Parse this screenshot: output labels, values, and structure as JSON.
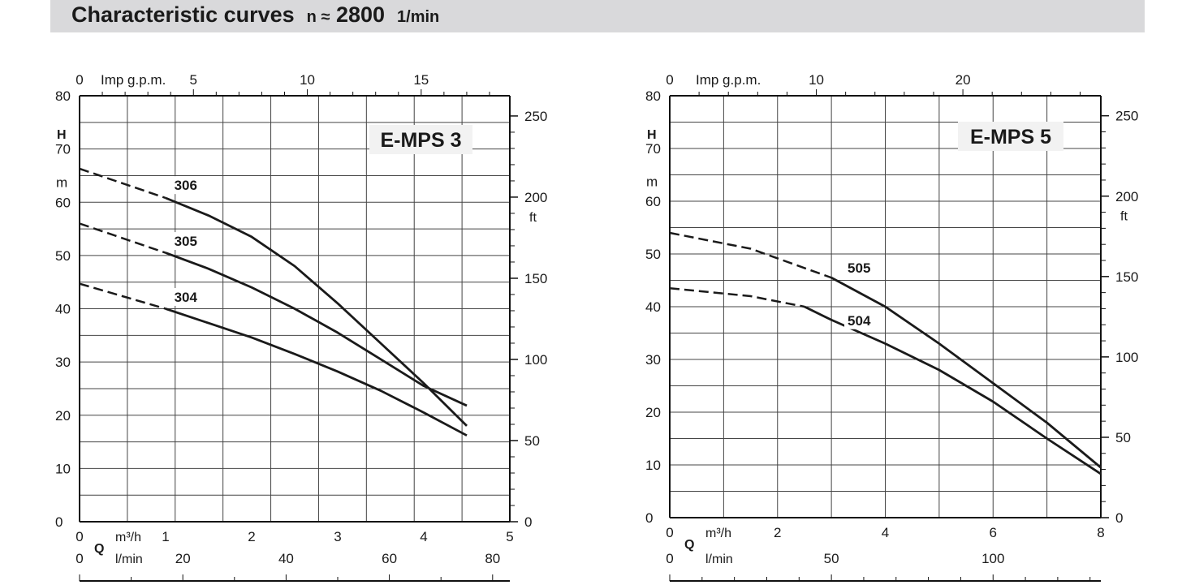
{
  "header": {
    "title": "Characteristic curves",
    "speed_symbol": "n ≈",
    "speed_value": "2800",
    "speed_unit": "1/min"
  },
  "chart_data": [
    {
      "type": "line",
      "title": "E-MPS 3",
      "left_unit_symbol": "H",
      "left_unit": "m",
      "right_unit": "ft",
      "ylim": [
        0,
        80
      ],
      "yticks": [
        0,
        10,
        20,
        30,
        40,
        50,
        60,
        70,
        80
      ],
      "ylabels": [
        "0",
        "10",
        "20",
        "30",
        "40",
        "50",
        "60",
        "70",
        "80"
      ],
      "right_ticks": [
        0,
        50,
        100,
        150,
        200,
        250
      ],
      "right_labels": [
        "0",
        "50",
        "100",
        "150",
        "200",
        "250"
      ],
      "xlim": [
        0,
        5
      ],
      "xlabel_symbol": "Q",
      "x_unit": "m³/h",
      "xticks": [
        0,
        1,
        2,
        3,
        4,
        5
      ],
      "xlabels": [
        "0",
        "1",
        "2",
        "3",
        "4",
        "5"
      ],
      "lmin_unit": "l/min",
      "lmin_ticks": [
        0,
        20,
        40,
        60,
        80
      ],
      "lmin_labels": [
        "0",
        "20",
        "40",
        "60",
        "80"
      ],
      "impgpm_unit": "Imp g.p.m.",
      "impgpm_ticks": [
        0,
        5,
        10,
        15
      ],
      "impgpm_labels": [
        "0",
        "5",
        "10",
        "15"
      ],
      "series": [
        {
          "name": "306",
          "label_at": [
            1.1,
            62.3
          ],
          "dashed": [
            [
              0,
              66.3
            ],
            [
              1,
              60.8
            ]
          ],
          "solid": [
            [
              1,
              60.8
            ],
            [
              1.5,
              57.5
            ],
            [
              2,
              53.5
            ],
            [
              2.5,
              48
            ],
            [
              3,
              41
            ],
            [
              3.5,
              33.5
            ],
            [
              4,
              26
            ],
            [
              4.5,
              18
            ]
          ]
        },
        {
          "name": "305",
          "label_at": [
            1.1,
            51.8
          ],
          "dashed": [
            [
              0,
              56
            ],
            [
              1,
              50.5
            ]
          ],
          "solid": [
            [
              1,
              50.5
            ],
            [
              1.5,
              47.5
            ],
            [
              2,
              44
            ],
            [
              2.5,
              40
            ],
            [
              3,
              35.5
            ],
            [
              3.5,
              30.5
            ],
            [
              4,
              25.5
            ],
            [
              4.5,
              21.8
            ]
          ]
        },
        {
          "name": "304",
          "label_at": [
            1.1,
            41.3
          ],
          "dashed": [
            [
              0,
              44.7
            ],
            [
              1,
              40
            ]
          ],
          "solid": [
            [
              1,
              40
            ],
            [
              1.5,
              37.3
            ],
            [
              2,
              34.6
            ],
            [
              2.5,
              31.5
            ],
            [
              3,
              28.2
            ],
            [
              3.5,
              24.6
            ],
            [
              4,
              20.5
            ],
            [
              4.5,
              16.2
            ]
          ]
        }
      ]
    },
    {
      "type": "line",
      "title": "E-MPS 5",
      "left_unit_symbol": "H",
      "left_unit": "m",
      "right_unit": "ft",
      "ylim": [
        0,
        80
      ],
      "yticks": [
        0,
        10,
        20,
        30,
        40,
        50,
        60,
        70,
        80
      ],
      "ylabels": [
        "0",
        "10",
        "20",
        "30",
        "40",
        "50",
        "60",
        "70",
        "80"
      ],
      "right_ticks": [
        0,
        50,
        100,
        150,
        200,
        250
      ],
      "right_labels": [
        "0",
        "50",
        "100",
        "150",
        "200",
        "250"
      ],
      "xlim": [
        0,
        8
      ],
      "xlabel_symbol": "Q",
      "x_unit": "m³/h",
      "xticks": [
        0,
        2,
        4,
        6,
        8
      ],
      "xlabels": [
        "0",
        "2",
        "4",
        "6",
        "8"
      ],
      "lmin_unit": "l/min",
      "lmin_ticks": [
        0,
        50,
        100
      ],
      "lmin_labels": [
        "0",
        "50",
        "100"
      ],
      "impgpm_unit": "Imp g.p.m.",
      "impgpm_ticks": [
        0,
        10,
        20
      ],
      "impgpm_labels": [
        "0",
        "10",
        "20"
      ],
      "series": [
        {
          "name": "505",
          "label_at": [
            3.3,
            46.5
          ],
          "dashed": [
            [
              0,
              54
            ],
            [
              1.5,
              51
            ],
            [
              3,
              45.5
            ]
          ],
          "solid": [
            [
              3,
              45.5
            ],
            [
              4,
              40
            ],
            [
              5,
              33
            ],
            [
              6,
              25.5
            ],
            [
              7,
              18
            ],
            [
              8,
              9.5
            ]
          ]
        },
        {
          "name": "504",
          "label_at": [
            3.3,
            36.5
          ],
          "dashed": [
            [
              0,
              43.5
            ],
            [
              1.5,
              42
            ],
            [
              2.5,
              40
            ]
          ],
          "solid": [
            [
              2.5,
              40
            ],
            [
              3,
              37.5
            ],
            [
              4,
              33
            ],
            [
              5,
              28
            ],
            [
              6,
              22
            ],
            [
              7,
              15
            ],
            [
              8,
              8.3
            ]
          ]
        }
      ]
    }
  ]
}
